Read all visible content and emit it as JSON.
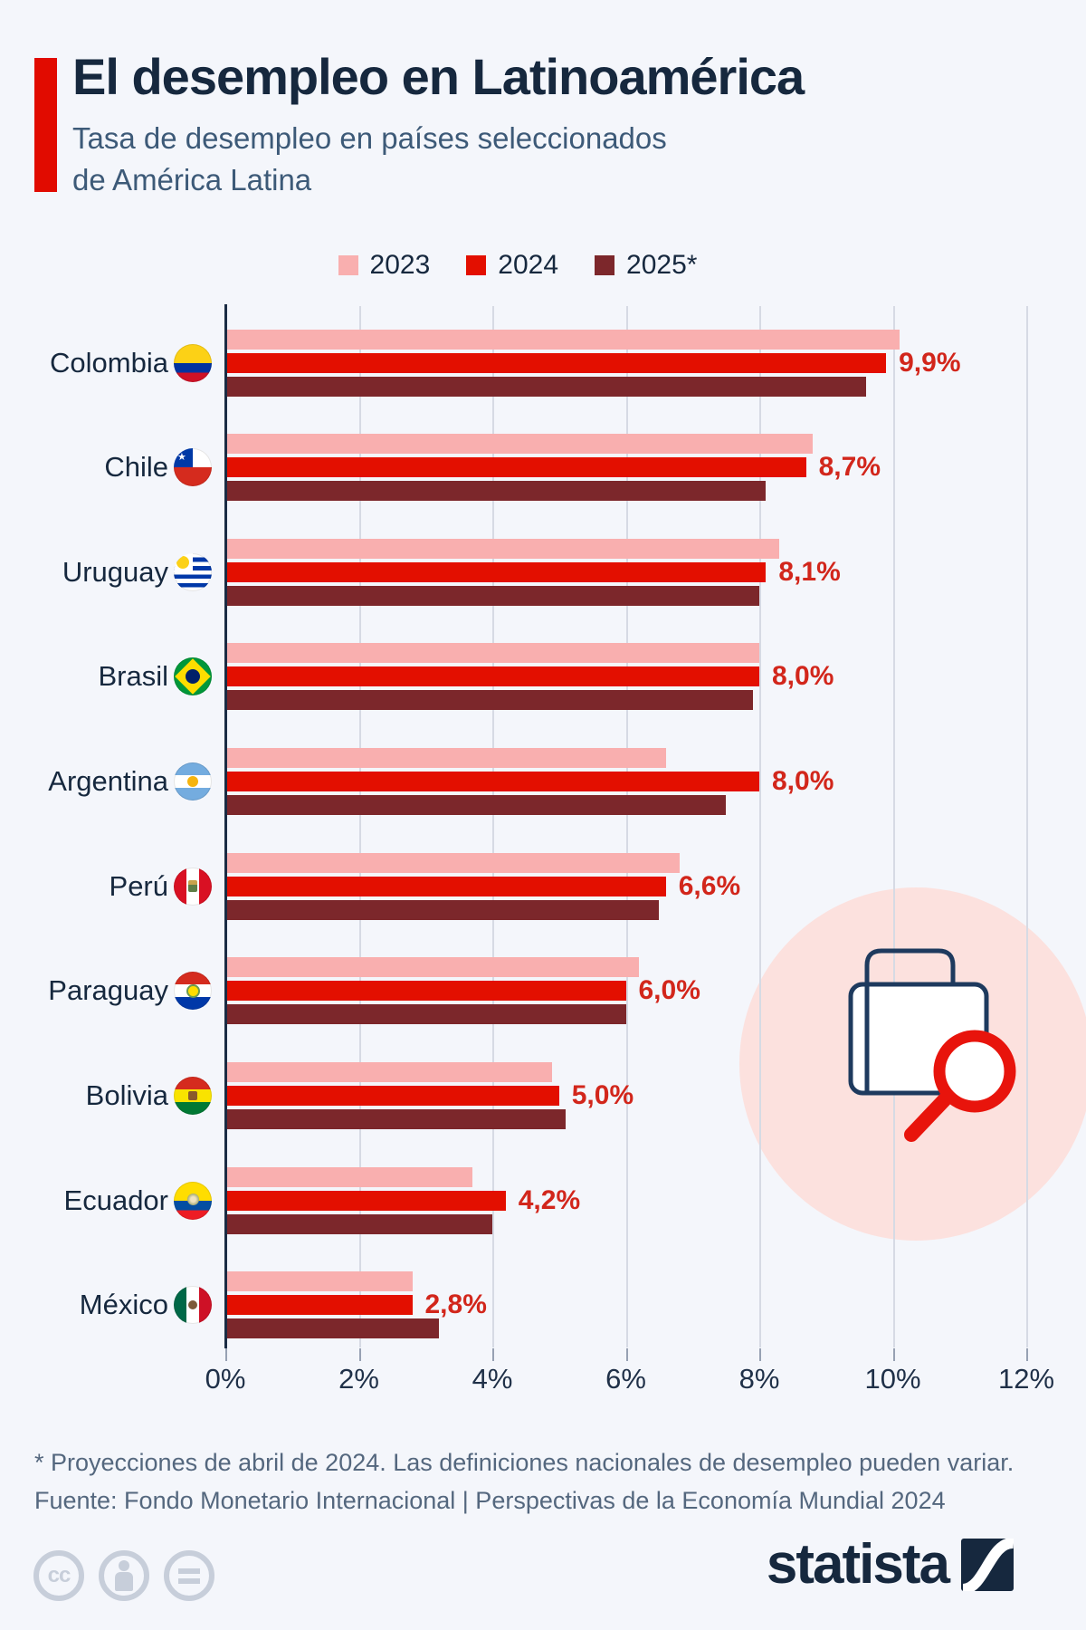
{
  "header": {
    "title": "El desempleo en Latinoamérica",
    "subtitle_line1": "Tasa de desempleo en países seleccionados",
    "subtitle_line2": "de América Latina"
  },
  "legend": {
    "items": [
      {
        "label": "2023",
        "color": "#F9AFAF"
      },
      {
        "label": "2024",
        "color": "#E30F00"
      },
      {
        "label": "2025*",
        "color": "#7C272B"
      }
    ]
  },
  "chart_data": {
    "type": "bar",
    "orientation": "horizontal",
    "title": "El desempleo en Latinoamérica",
    "subtitle": "Tasa de desempleo en países seleccionados de América Latina",
    "categories": [
      "Colombia",
      "Chile",
      "Uruguay",
      "Brasil",
      "Argentina",
      "Perú",
      "Paraguay",
      "Bolivia",
      "Ecuador",
      "México"
    ],
    "flag_slugs": [
      "colombia",
      "chile",
      "uruguay",
      "brasil",
      "argentina",
      "peru",
      "paraguay",
      "bolivia",
      "ecuador",
      "mexico"
    ],
    "series": [
      {
        "name": "2023",
        "color": "#F9AFAF",
        "values": [
          10.1,
          8.8,
          8.3,
          8.0,
          6.6,
          6.8,
          6.2,
          4.9,
          3.7,
          2.8
        ]
      },
      {
        "name": "2024",
        "color": "#E30F00",
        "values": [
          9.9,
          8.7,
          8.1,
          8.0,
          8.0,
          6.6,
          6.0,
          5.0,
          4.2,
          2.8
        ]
      },
      {
        "name": "2025*",
        "color": "#7C272B",
        "values": [
          9.6,
          8.1,
          8.0,
          7.9,
          7.5,
          6.5,
          6.0,
          5.1,
          4.0,
          3.2
        ]
      }
    ],
    "value_labels": {
      "labeled_series": "2024",
      "texts": [
        "9,9%",
        "8,7%",
        "8,1%",
        "8,0%",
        "8,0%",
        "6,6%",
        "6,0%",
        "5,0%",
        "4,2%",
        "2,8%"
      ]
    },
    "x_ticks": [
      "0%",
      "2%",
      "4%",
      "6%",
      "8%",
      "10%",
      "12%"
    ],
    "xlim": [
      0,
      12
    ],
    "xlabel": "",
    "ylabel": "",
    "grid": true,
    "legend_position": "top"
  },
  "footnote": {
    "line1": "* Proyecciones de abril de 2024. Las definiciones nacionales de desempleo pueden variar.",
    "line2": "Fuente: Fondo Monetario Internacional | Perspectivas de la Economía Mundial 2024"
  },
  "branding": {
    "logo_text": "statista"
  },
  "colors": {
    "background": "#f4f6fb",
    "accent_red": "#E10B00",
    "navy": "#16283E",
    "subtitle_gray_blue": "#3D5A78",
    "value_label_red": "#D2261B",
    "gridline": "#D6DAE4",
    "footnote_gray": "#54677E",
    "deco_circle_pink": "#FCE1DE"
  }
}
